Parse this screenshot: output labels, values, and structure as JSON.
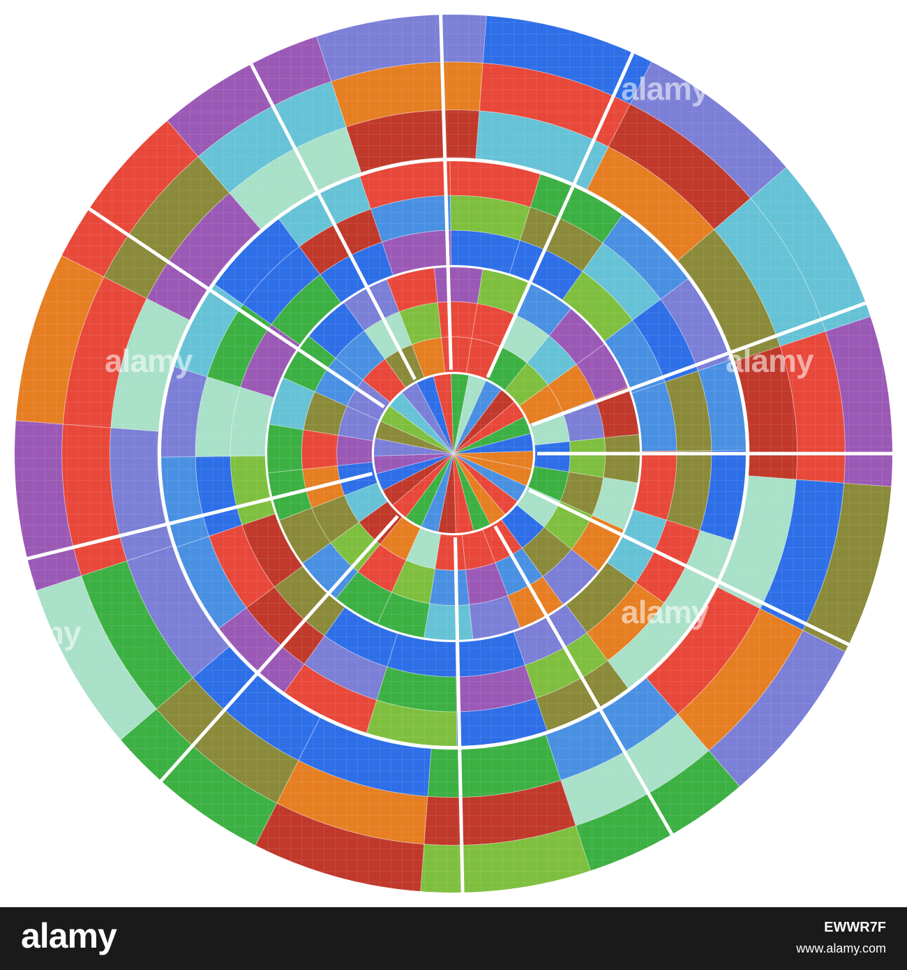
{
  "artwork": {
    "description_colors": [
      "#2e6fe8",
      "#4a90e2",
      "#3cb043",
      "#7fbf3f",
      "#8a8a3a",
      "#e8483a",
      "#c0392b",
      "#7b7fd6",
      "#a8e0c8",
      "#66c2d6",
      "#9b59b6",
      "#e67e22"
    ]
  },
  "watermarks": [
    "alamy",
    "alamy",
    "alamy",
    "alamy",
    "alamy"
  ],
  "footer": {
    "logo": "alamy",
    "image_id": "EWWR7F",
    "url": "www.alamy.com"
  }
}
